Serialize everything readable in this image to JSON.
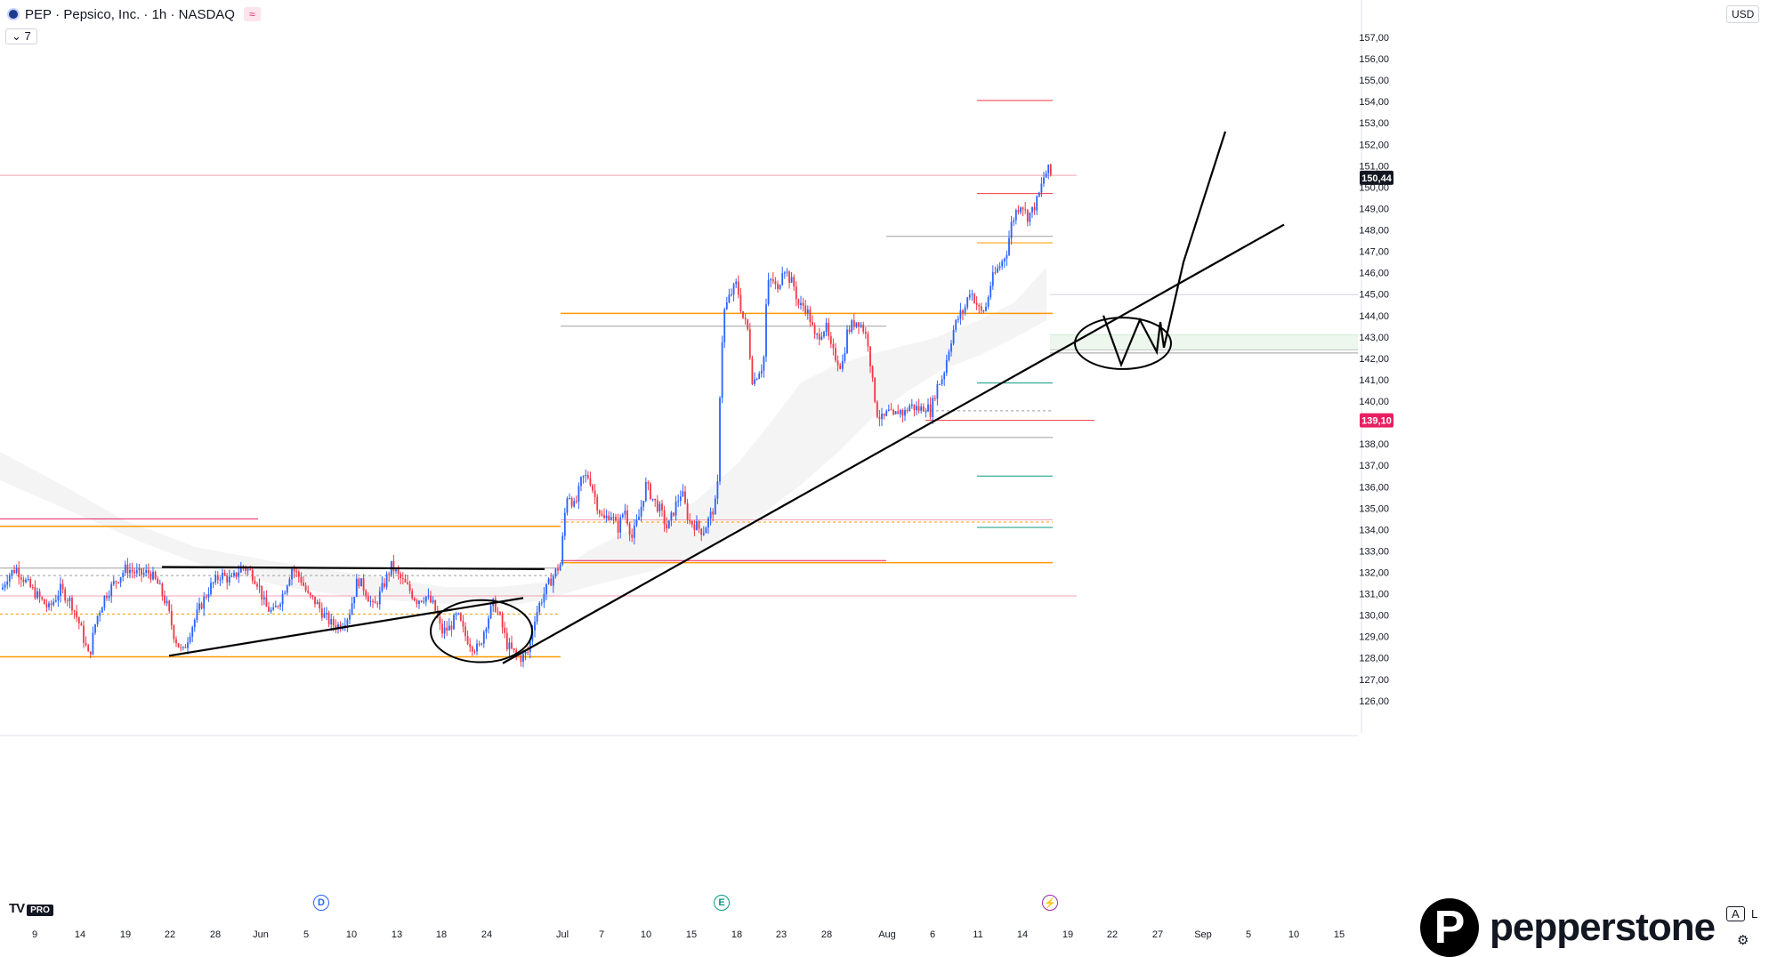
{
  "header": {
    "symbol": "PEP",
    "company": "Pepsico, Inc.",
    "interval": "1h",
    "exchange": "NASDAQ",
    "indicator_count": "7"
  },
  "axis": {
    "currency": "USD"
  },
  "brand": {
    "name": "pepperstone"
  },
  "watermark": {
    "tv_logo": "TV",
    "tv_pro": "PRO"
  },
  "events": [
    {
      "label": "D",
      "x_date": "May 31",
      "color": "#2962ff"
    },
    {
      "label": "E",
      "x_date": "Jul 17",
      "color": "#089981"
    },
    {
      "label": "⚡",
      "x_date": "Aug 17",
      "color": "#9c27b0"
    }
  ],
  "corner": {
    "a": "A",
    "l": "L"
  },
  "chart_data": {
    "type": "candlestick",
    "xticks": [
      "9",
      "14",
      "19",
      "22",
      "28",
      "Jun",
      "5",
      "10",
      "13",
      "18",
      "24",
      "Jul",
      "7",
      "10",
      "15",
      "18",
      "23",
      "28",
      "Aug",
      "6",
      "11",
      "14",
      "19",
      "22",
      "27",
      "Sep",
      "5",
      "10",
      "15"
    ],
    "ylim": [
      125.3,
      158.5
    ],
    "yticks": [
      "126,00",
      "127,00",
      "128,00",
      "129,00",
      "130,00",
      "131,00",
      "132,00",
      "133,00",
      "134,00",
      "135,00",
      "136,00",
      "137,00",
      "138,00",
      "139,00",
      "140,00",
      "141,00",
      "142,00",
      "143,00",
      "144,00",
      "145,00",
      "146,00",
      "147,00",
      "148,00",
      "149,00",
      "150,00",
      "151,00",
      "152,00",
      "153,00",
      "154,00",
      "155,00",
      "156,00",
      "157,00"
    ],
    "last_price": {
      "label": "150,44",
      "value": 150.44
    },
    "marked_price": {
      "label": "139,10",
      "value": 139.1,
      "color": "#e91e63"
    },
    "up_color": "#2962ff",
    "down_color": "#f23645",
    "price_path": [
      [
        0,
        131.0
      ],
      [
        8,
        131.8
      ],
      [
        18,
        132.2
      ],
      [
        30,
        131.5
      ],
      [
        42,
        130.9
      ],
      [
        55,
        130.3
      ],
      [
        68,
        131.2
      ],
      [
        80,
        130.6
      ],
      [
        90,
        129.5
      ],
      [
        100,
        128.0
      ],
      [
        108,
        129.8
      ],
      [
        118,
        130.9
      ],
      [
        130,
        131.6
      ],
      [
        142,
        132.2
      ],
      [
        156,
        131.9
      ],
      [
        168,
        132.0
      ],
      [
        178,
        131.4
      ],
      [
        188,
        130.4
      ],
      [
        196,
        129.0
      ],
      [
        205,
        128.2
      ],
      [
        214,
        129.3
      ],
      [
        225,
        130.4
      ],
      [
        236,
        131.3
      ],
      [
        248,
        131.9
      ],
      [
        260,
        131.6
      ],
      [
        272,
        132.3
      ],
      [
        282,
        132.0
      ],
      [
        290,
        131.5
      ],
      [
        298,
        130.4
      ],
      [
        307,
        130.1
      ],
      [
        318,
        131.0
      ],
      [
        328,
        132.2
      ],
      [
        338,
        131.7
      ],
      [
        346,
        130.9
      ],
      [
        355,
        130.6
      ],
      [
        364,
        130.0
      ],
      [
        372,
        129.6
      ],
      [
        381,
        129.5
      ],
      [
        392,
        130.0
      ],
      [
        402,
        131.7
      ],
      [
        410,
        131.2
      ],
      [
        420,
        130.3
      ],
      [
        430,
        131.3
      ],
      [
        440,
        132.3
      ],
      [
        448,
        131.8
      ],
      [
        458,
        131.3
      ],
      [
        468,
        130.7
      ],
      [
        478,
        130.9
      ],
      [
        488,
        130.4
      ],
      [
        496,
        129.2
      ],
      [
        505,
        129.4
      ],
      [
        514,
        130.0
      ],
      [
        522,
        129.1
      ],
      [
        530,
        128.6
      ],
      [
        538,
        128.4
      ],
      [
        546,
        129.6
      ],
      [
        555,
        130.6
      ],
      [
        562,
        129.8
      ],
      [
        570,
        128.6
      ],
      [
        578,
        128.2
      ],
      [
        586,
        128.0
      ],
      [
        594,
        128.3
      ],
      [
        600,
        129.8
      ],
      [
        608,
        130.7
      ],
      [
        616,
        131.4
      ],
      [
        624,
        132.0
      ],
      [
        630,
        132.4
      ],
      [
        634,
        134.5
      ],
      [
        638,
        135.8
      ],
      [
        646,
        135.0
      ],
      [
        654,
        136.4
      ],
      [
        662,
        136.5
      ],
      [
        670,
        135.3
      ],
      [
        678,
        134.4
      ],
      [
        686,
        134.8
      ],
      [
        694,
        134.0
      ],
      [
        702,
        135.0
      ],
      [
        710,
        133.6
      ],
      [
        718,
        134.6
      ],
      [
        726,
        136.1
      ],
      [
        734,
        135.4
      ],
      [
        742,
        134.9
      ],
      [
        750,
        134.0
      ],
      [
        758,
        135.0
      ],
      [
        766,
        135.8
      ],
      [
        774,
        134.4
      ],
      [
        782,
        134.2
      ],
      [
        790,
        133.9
      ],
      [
        798,
        134.6
      ],
      [
        806,
        135.4
      ],
      [
        810,
        142.0
      ],
      [
        814,
        144.2
      ],
      [
        820,
        144.9
      ],
      [
        828,
        145.5
      ],
      [
        834,
        144.0
      ],
      [
        840,
        143.4
      ],
      [
        846,
        140.8
      ],
      [
        852,
        141.4
      ],
      [
        858,
        141.7
      ],
      [
        862,
        145.4
      ],
      [
        868,
        145.7
      ],
      [
        874,
        145.1
      ],
      [
        880,
        146.4
      ],
      [
        886,
        145.8
      ],
      [
        892,
        145.4
      ],
      [
        898,
        144.4
      ],
      [
        904,
        144.5
      ],
      [
        910,
        143.9
      ],
      [
        916,
        142.9
      ],
      [
        922,
        143.2
      ],
      [
        928,
        143.5
      ],
      [
        934,
        142.4
      ],
      [
        940,
        142.0
      ],
      [
        946,
        141.6
      ],
      [
        952,
        143.2
      ],
      [
        958,
        143.6
      ],
      [
        964,
        143.8
      ],
      [
        970,
        143.4
      ],
      [
        976,
        142.7
      ],
      [
        980,
        141.0
      ],
      [
        986,
        139.4
      ],
      [
        992,
        139.1
      ],
      [
        998,
        139.5
      ],
      [
        1004,
        139.2
      ],
      [
        1010,
        139.6
      ],
      [
        1016,
        139.4
      ],
      [
        1022,
        139.8
      ],
      [
        1028,
        139.7
      ],
      [
        1034,
        139.6
      ],
      [
        1040,
        139.8
      ],
      [
        1046,
        139.5
      ],
      [
        1052,
        140.6
      ],
      [
        1060,
        141.2
      ],
      [
        1066,
        142.4
      ],
      [
        1072,
        143.4
      ],
      [
        1078,
        144.0
      ],
      [
        1084,
        144.3
      ],
      [
        1090,
        145.2
      ],
      [
        1096,
        144.7
      ],
      [
        1102,
        144.1
      ],
      [
        1108,
        144.4
      ],
      [
        1114,
        145.6
      ],
      [
        1120,
        146.1
      ],
      [
        1126,
        146.5
      ],
      [
        1132,
        147.1
      ],
      [
        1136,
        148.2
      ],
      [
        1142,
        148.9
      ],
      [
        1148,
        149.3
      ],
      [
        1154,
        148.6
      ],
      [
        1160,
        148.9
      ],
      [
        1166,
        149.4
      ],
      [
        1170,
        150.0
      ],
      [
        1174,
        150.6
      ],
      [
        1178,
        150.8
      ],
      [
        1182,
        150.44
      ]
    ],
    "horizontal_levels": [
      {
        "value": 150.55,
        "x0": 0,
        "x1": 1210,
        "color": "#f4a3b4",
        "width": 1
      },
      {
        "value": 154.05,
        "x0": 1098,
        "x1": 1183,
        "color": "#f23645",
        "width": 1
      },
      {
        "value": 149.7,
        "x0": 1098,
        "x1": 1183,
        "color": "#f23645",
        "width": 1
      },
      {
        "value": 147.7,
        "x0": 996,
        "x1": 1183,
        "color": "#9e9e9e",
        "width": 1
      },
      {
        "value": 147.4,
        "x0": 1098,
        "x1": 1183,
        "color": "#ff9800",
        "width": 1
      },
      {
        "value": 144.98,
        "x0": 1180,
        "x1": 1526,
        "color": "#d1d4dc",
        "width": 1
      },
      {
        "value": 144.1,
        "x0": 630,
        "x1": 1183,
        "color": "#ff9800",
        "width": 1.5
      },
      {
        "value": 143.5,
        "x0": 630,
        "x1": 996,
        "color": "#9e9e9e",
        "width": 1
      },
      {
        "value": 143.1,
        "x0": 1180,
        "x1": 1526,
        "color": "#c8e6c9",
        "width": 1
      },
      {
        "value": 142.4,
        "x0": 1180,
        "x1": 1526,
        "color": "#9e9e9e",
        "width": 1
      },
      {
        "value": 142.25,
        "x0": 1180,
        "x1": 1526,
        "color": "#9e9e9e",
        "width": 1
      },
      {
        "value": 140.85,
        "x0": 1098,
        "x1": 1183,
        "color": "#089981",
        "width": 1
      },
      {
        "value": 139.55,
        "x0": 1040,
        "x1": 1183,
        "color": "#9e9e9e",
        "width": 1,
        "dash": "3,3"
      },
      {
        "value": 139.1,
        "x0": 1040,
        "x1": 1230,
        "color": "#f23645",
        "width": 1
      },
      {
        "value": 138.3,
        "x0": 1020,
        "x1": 1183,
        "color": "#9e9e9e",
        "width": 1
      },
      {
        "value": 136.5,
        "x0": 1098,
        "x1": 1183,
        "color": "#089981",
        "width": 1
      },
      {
        "value": 134.5,
        "x0": 0,
        "x1": 290,
        "color": "#e91e63",
        "width": 1
      },
      {
        "value": 134.45,
        "x0": 630,
        "x1": 1183,
        "color": "#f4a3b4",
        "width": 1
      },
      {
        "value": 134.35,
        "x0": 630,
        "x1": 1183,
        "color": "#ff9800",
        "width": 1,
        "dash": "3,3"
      },
      {
        "value": 134.15,
        "x0": 0,
        "x1": 630,
        "color": "#ff9800",
        "width": 1.5
      },
      {
        "value": 134.1,
        "x0": 1098,
        "x1": 1183,
        "color": "#089981",
        "width": 1
      },
      {
        "value": 132.55,
        "x0": 630,
        "x1": 996,
        "color": "#e91e63",
        "width": 1
      },
      {
        "value": 132.45,
        "x0": 630,
        "x1": 1183,
        "color": "#ff9800",
        "width": 1.5
      },
      {
        "value": 132.2,
        "x0": 0,
        "x1": 630,
        "color": "#9e9e9e",
        "width": 1
      },
      {
        "value": 131.85,
        "x0": 0,
        "x1": 630,
        "color": "#9e9e9e",
        "width": 1,
        "dash": "3,3"
      },
      {
        "value": 130.9,
        "x0": 0,
        "x1": 1210,
        "color": "#f4a3b4",
        "width": 1
      },
      {
        "value": 130.05,
        "x0": 0,
        "x1": 630,
        "color": "#ff9800",
        "width": 1,
        "dash": "3,3"
      },
      {
        "value": 128.05,
        "x0": 0,
        "x1": 630,
        "color": "#ff9800",
        "width": 1.5
      }
    ],
    "annotations": {
      "trendlines": [
        {
          "x0": 182,
          "y0": 132.25,
          "x1": 612,
          "y1": 132.15
        },
        {
          "x0": 190,
          "y0": 128.1,
          "x1": 588,
          "y1": 130.8
        },
        {
          "x0": 565,
          "y0": 127.75,
          "x1": 1443,
          "y1": 148.25
        }
      ],
      "ellipses": [
        {
          "cx": 541,
          "cy": 129.25,
          "rx": 57,
          "ry": 1.45
        },
        {
          "cx": 1262,
          "cy": 142.7,
          "rx": 54,
          "ry": 1.2
        }
      ],
      "projection_path": [
        [
          1240,
          144.0
        ],
        [
          1260,
          141.7
        ],
        [
          1281,
          143.8
        ],
        [
          1300,
          142.3
        ],
        [
          1304,
          143.7
        ],
        [
          1308,
          142.5
        ],
        [
          1330,
          146.5
        ],
        [
          1377,
          152.6
        ]
      ]
    }
  }
}
